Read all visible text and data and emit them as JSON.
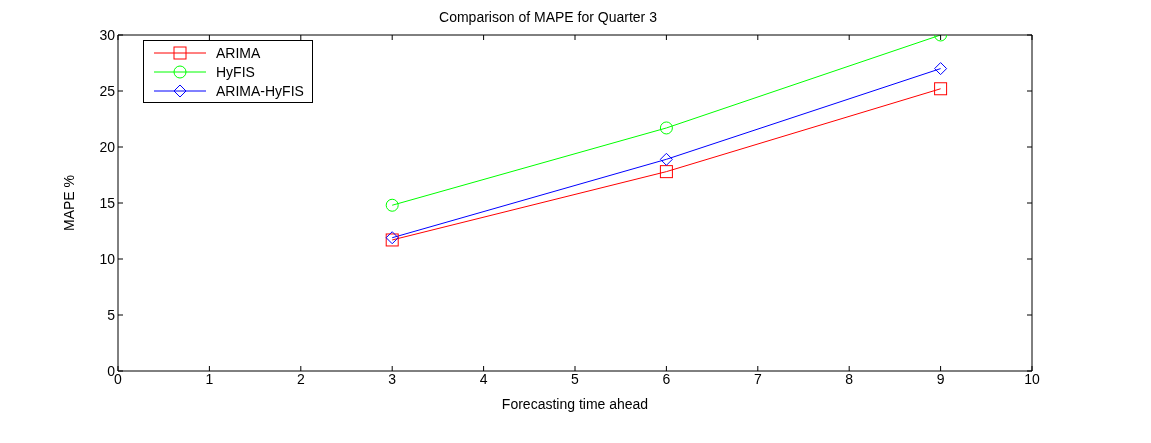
{
  "chart_data": {
    "type": "line",
    "title": "Comparison of MAPE for Quarter 3",
    "xlabel": "Forecasting time ahead",
    "ylabel": "MAPE %",
    "x": [
      3,
      6,
      9
    ],
    "series": [
      {
        "name": "ARIMA",
        "color": "#ff0000",
        "marker": "square",
        "values": [
          11.7,
          17.8,
          25.2
        ]
      },
      {
        "name": "HyFIS",
        "color": "#00ff00",
        "marker": "circle",
        "values": [
          14.8,
          21.7,
          30
        ]
      },
      {
        "name": "ARIMA-HyFIS",
        "color": "#0000ff",
        "marker": "diamond",
        "values": [
          11.9,
          18.9,
          27
        ]
      }
    ],
    "xlim": [
      0,
      10
    ],
    "xticks": [
      0,
      1,
      2,
      3,
      4,
      5,
      6,
      7,
      8,
      9,
      10
    ],
    "ylim": [
      0,
      30
    ],
    "yticks": [
      0,
      5,
      10,
      15,
      20,
      25,
      30
    ],
    "legend": "top left",
    "line_style": "solid"
  }
}
